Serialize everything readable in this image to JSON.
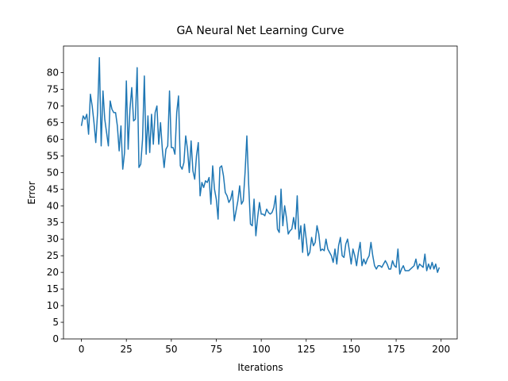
{
  "chart_data": {
    "type": "line",
    "title": "GA Neural Net Learning Curve",
    "x_label": "Iterations",
    "y_label": "Error",
    "x": [
      0,
      1,
      2,
      3,
      4,
      5,
      6,
      7,
      8,
      9,
      10,
      11,
      12,
      13,
      14,
      15,
      16,
      17,
      18,
      19,
      20,
      21,
      22,
      23,
      24,
      25,
      26,
      27,
      28,
      29,
      30,
      31,
      32,
      33,
      34,
      35,
      36,
      37,
      38,
      39,
      40,
      41,
      42,
      43,
      44,
      45,
      46,
      47,
      48,
      49,
      50,
      51,
      52,
      53,
      54,
      55,
      56,
      57,
      58,
      59,
      60,
      61,
      62,
      63,
      64,
      65,
      66,
      67,
      68,
      69,
      70,
      71,
      72,
      73,
      74,
      75,
      76,
      77,
      78,
      79,
      80,
      81,
      82,
      83,
      84,
      85,
      86,
      87,
      88,
      89,
      90,
      91,
      92,
      93,
      94,
      95,
      96,
      97,
      98,
      99,
      100,
      101,
      102,
      103,
      104,
      105,
      106,
      107,
      108,
      109,
      110,
      111,
      112,
      113,
      114,
      115,
      116,
      117,
      118,
      119,
      120,
      121,
      122,
      123,
      124,
      125,
      126,
      127,
      128,
      129,
      130,
      131,
      132,
      133,
      134,
      135,
      136,
      137,
      138,
      139,
      140,
      141,
      142,
      143,
      144,
      145,
      146,
      147,
      148,
      149,
      150,
      151,
      152,
      153,
      154,
      155,
      156,
      157,
      158,
      159,
      160,
      161,
      162,
      163,
      164,
      165,
      166,
      167,
      168,
      169,
      170,
      171,
      172,
      173,
      174,
      175,
      176,
      177,
      178,
      179,
      180,
      181,
      182,
      183,
      184,
      185,
      186,
      187,
      188,
      189,
      190,
      191,
      192,
      193,
      194,
      195,
      196,
      197,
      198,
      199
    ],
    "series": [
      {
        "color": "#1f77b4",
        "values": [
          64,
          67,
          66,
          67.5,
          61.5,
          73.5,
          70,
          65,
          59,
          68,
          84.5,
          58,
          74.5,
          66,
          62,
          58,
          71.5,
          69,
          68,
          68,
          64,
          56.5,
          64,
          51,
          56,
          77.5,
          57,
          69,
          75.5,
          65.5,
          66,
          81.5,
          51.5,
          52.5,
          60,
          79,
          55.5,
          67,
          56,
          67.5,
          58.5,
          68,
          70,
          58.5,
          65,
          57,
          51.5,
          57,
          58,
          74.5,
          57.5,
          57.5,
          55.5,
          68,
          73,
          52,
          51,
          53,
          61,
          57,
          50,
          59.5,
          50.5,
          48,
          55,
          59,
          43,
          47,
          45.5,
          47.5,
          47,
          48.5,
          40.5,
          52,
          45,
          42,
          36,
          51.5,
          52,
          49,
          44,
          43,
          41,
          42,
          44.5,
          35.5,
          38.5,
          41.5,
          46,
          40.5,
          41.5,
          50,
          61,
          46.5,
          34.5,
          34,
          42,
          31,
          36.5,
          41,
          37.5,
          37.5,
          37,
          39,
          38,
          37.5,
          38,
          39.5,
          43,
          33,
          32,
          45,
          34,
          40,
          36.5,
          31.5,
          32.5,
          33,
          36.5,
          33,
          43,
          30,
          34,
          26,
          34.5,
          30,
          25,
          26,
          30.5,
          28,
          29,
          34,
          31.5,
          26.5,
          27,
          26.5,
          30,
          27,
          26,
          25,
          23,
          27,
          22.5,
          28,
          30.5,
          25,
          24.5,
          28.5,
          30,
          26.5,
          22.5,
          27,
          25,
          22,
          26,
          29,
          22,
          24,
          22.5,
          24,
          25,
          29,
          25,
          22,
          21,
          22,
          22,
          21.5,
          22.5,
          23.5,
          22.5,
          21,
          21,
          23.5,
          22,
          21.5,
          27,
          19.5,
          21,
          22,
          20.5,
          20.5,
          20.5,
          21,
          21.5,
          22,
          24,
          21,
          22.5,
          22,
          21.5,
          25.5,
          20.5,
          22.5,
          21,
          23,
          21,
          22.5,
          20,
          21.5
        ]
      }
    ],
    "xlim": [
      -9.95,
      208.95
    ],
    "ylim": [
      0,
      88
    ],
    "xticks": [
      0,
      25,
      50,
      75,
      100,
      125,
      150,
      175,
      200
    ],
    "yticks": [
      0,
      5,
      10,
      15,
      20,
      25,
      30,
      35,
      40,
      45,
      50,
      55,
      60,
      65,
      70,
      75,
      80
    ]
  }
}
